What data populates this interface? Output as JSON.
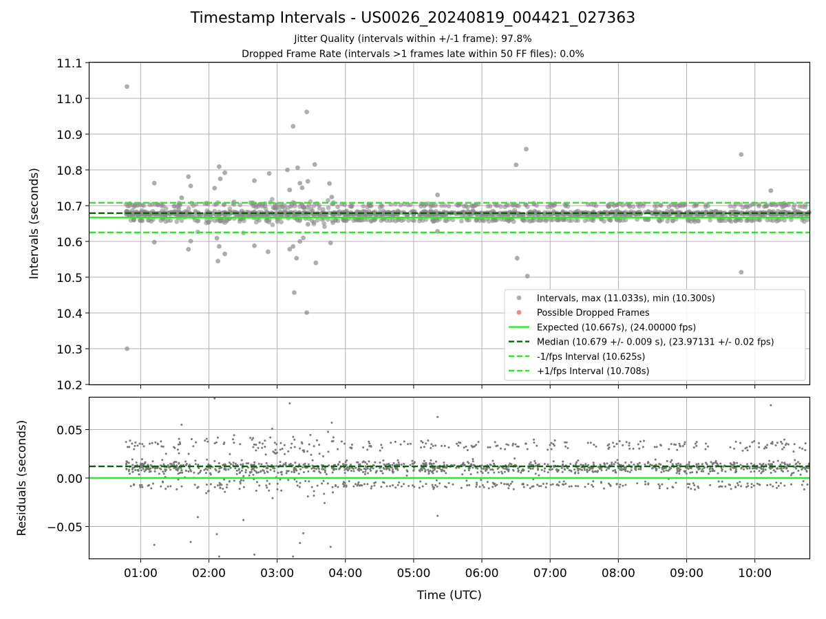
{
  "chart_data": [
    {
      "type": "scatter",
      "title": "Timestamp Intervals - US0026_20240819_004421_027363",
      "subtitles": [
        "Jitter Quality (intervals within +/-1 frame): 97.8%",
        "Dropped Frame Rate (intervals >1 frames late within 50 FF files): 0.0%"
      ],
      "xlabel": "",
      "ylabel": "Intervals (seconds)",
      "ylim": [
        10.2,
        11.1
      ],
      "yticks": [
        "10.2",
        "10.3",
        "10.4",
        "10.5",
        "10.6",
        "10.7",
        "10.8",
        "10.9",
        "11.0",
        "11.1"
      ],
      "xlim": [
        "00:15",
        "10:48"
      ],
      "xticks": [
        "01:00",
        "02:00",
        "03:00",
        "04:00",
        "05:00",
        "06:00",
        "07:00",
        "08:00",
        "09:00",
        "10:00"
      ],
      "grid": true,
      "legend_position": "lower-right",
      "legend": [
        {
          "label": "Intervals, max (11.033s), min (10.300s)",
          "kind": "dot",
          "color": "#999999"
        },
        {
          "label": "Possible Dropped Frames",
          "kind": "dot",
          "color": "#ff6666"
        },
        {
          "label": "Expected (10.667s), (24.00000 fps)",
          "kind": "solid",
          "color": "#22ee22"
        },
        {
          "label": "Median (10.679 +/- 0.009 s), (23.97131 +/- 0.02 fps)",
          "kind": "dashed",
          "color": "#006400"
        },
        {
          "label": "-1/fps Interval (10.625s)",
          "kind": "dashed",
          "color": "#22ee22"
        },
        {
          "label": "+1/fps Interval (10.708s)",
          "kind": "dashed",
          "color": "#22ee22"
        }
      ],
      "reference_lines": [
        {
          "name": "Expected",
          "y": 10.667,
          "style": "solid",
          "color": "#22ee22"
        },
        {
          "name": "Median",
          "y": 10.679,
          "style": "dashed",
          "color": "#006400"
        },
        {
          "name": "-1/fps Interval",
          "y": 10.625,
          "style": "dashed",
          "color": "#22ee22"
        },
        {
          "name": "+1/fps Interval",
          "y": 10.708,
          "style": "dashed",
          "color": "#22ee22"
        }
      ],
      "data_range": {
        "start": "00:47",
        "end": "10:48",
        "max": 11.033,
        "min": 10.3
      },
      "outliers": [
        {
          "x": "00:48",
          "y": 11.033
        },
        {
          "x": "00:48",
          "y": 10.3
        },
        {
          "x": "01:12",
          "y": 10.763
        },
        {
          "x": "01:12",
          "y": 10.598
        },
        {
          "x": "01:36",
          "y": 10.722
        },
        {
          "x": "01:42",
          "y": 10.781
        },
        {
          "x": "01:44",
          "y": 10.755
        },
        {
          "x": "01:42",
          "y": 10.578
        },
        {
          "x": "01:44",
          "y": 10.601
        },
        {
          "x": "02:05",
          "y": 10.749
        },
        {
          "x": "02:09",
          "y": 10.809
        },
        {
          "x": "02:10",
          "y": 10.775
        },
        {
          "x": "02:14",
          "y": 10.792
        },
        {
          "x": "02:09",
          "y": 10.586
        },
        {
          "x": "02:14",
          "y": 10.565
        },
        {
          "x": "02:08",
          "y": 10.545
        },
        {
          "x": "02:07",
          "y": 10.609
        },
        {
          "x": "02:40",
          "y": 10.77
        },
        {
          "x": "02:40",
          "y": 10.588
        },
        {
          "x": "02:53",
          "y": 10.79
        },
        {
          "x": "02:52",
          "y": 10.571
        },
        {
          "x": "03:09",
          "y": 10.8
        },
        {
          "x": "03:11",
          "y": 10.744
        },
        {
          "x": "03:14",
          "y": 10.922
        },
        {
          "x": "03:18",
          "y": 10.806
        },
        {
          "x": "03:20",
          "y": 10.763
        },
        {
          "x": "03:22",
          "y": 10.75
        },
        {
          "x": "03:26",
          "y": 10.962
        },
        {
          "x": "03:27",
          "y": 10.768
        },
        {
          "x": "03:33",
          "y": 10.815
        },
        {
          "x": "03:15",
          "y": 10.457
        },
        {
          "x": "03:26",
          "y": 10.401
        },
        {
          "x": "03:17",
          "y": 10.553
        },
        {
          "x": "03:34",
          "y": 10.54
        },
        {
          "x": "03:14",
          "y": 10.586
        },
        {
          "x": "03:20",
          "y": 10.6
        },
        {
          "x": "03:27",
          "y": 10.648
        },
        {
          "x": "03:23",
          "y": 10.61
        },
        {
          "x": "03:11",
          "y": 10.578
        },
        {
          "x": "03:46",
          "y": 10.762
        },
        {
          "x": "03:47",
          "y": 10.596
        },
        {
          "x": "03:48",
          "y": 10.724
        },
        {
          "x": "05:21",
          "y": 10.73
        },
        {
          "x": "05:21",
          "y": 10.628
        },
        {
          "x": "06:30",
          "y": 10.814
        },
        {
          "x": "06:31",
          "y": 10.553
        },
        {
          "x": "06:39",
          "y": 10.858
        },
        {
          "x": "06:40",
          "y": 10.503
        },
        {
          "x": "09:48",
          "y": 10.843
        },
        {
          "x": "09:48",
          "y": 10.514
        },
        {
          "x": "10:14",
          "y": 10.742
        }
      ]
    },
    {
      "type": "scatter",
      "title": "",
      "xlabel": "Time (UTC)",
      "ylabel": "Residuals (seconds)",
      "ylim": [
        -0.083,
        0.083
      ],
      "yticks": [
        "0.05",
        "0.00",
        "−0.05"
      ],
      "xticks": [
        "01:00",
        "02:00",
        "03:00",
        "04:00",
        "05:00",
        "06:00",
        "07:00",
        "08:00",
        "09:00",
        "10:00"
      ],
      "grid": true,
      "reference_lines": [
        {
          "name": "Expected",
          "y": 0.0,
          "style": "solid",
          "color": "#22ee22"
        },
        {
          "name": "Median",
          "y": 0.012,
          "style": "dashed",
          "color": "#006400"
        }
      ],
      "point_color": "#777777"
    }
  ]
}
